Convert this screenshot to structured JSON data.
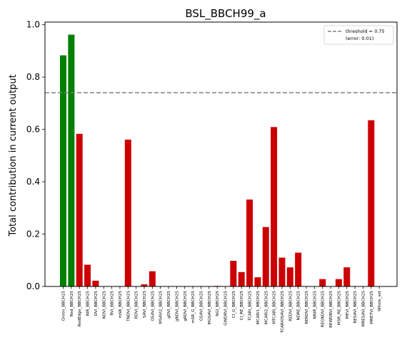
{
  "chart_data": {
    "type": "bar",
    "title": "BSL_BBCH99_a",
    "xlabel": "",
    "ylabel": "Total contribution in current output",
    "ylim": [
      0,
      1.01
    ],
    "yticks": [
      "0.0",
      "0.2",
      "0.4",
      "0.6",
      "0.8",
      "1.0"
    ],
    "threshold": 0.74,
    "legend": {
      "placement": "top-right",
      "line1": "threshold = 0.75",
      "line2": "(error: 0.01)"
    },
    "colors": {
      "selected": "#008000",
      "rejected": "#cc0000",
      "threshold": "#808080"
    },
    "categories": [
      "Green_BBCH25",
      "Red_BBCH25",
      "RedEdge_BBCH25",
      "NIR_BBCH25",
      "DVI_BBCH25",
      "NDVI_BBCH25",
      "RVI_BBCH25",
      "mSR_BBCH25",
      "TNDVI_BBCH25",
      "RDVI_BBCH25",
      "SAVI_BBCH25",
      "OSAVI_BBCH25",
      "MSAVI2_BBCH25",
      "gDVI_BBCH25",
      "gNDVI_BBCH25",
      "gRDVI_BBCH25",
      "mSR_G_BBCH25",
      "GSAVI_BBCH25",
      "MGSAVI_BBCH25",
      "NGI_BBCH25",
      "GWDRVI_BBCH25",
      "CI_G_BBCH25",
      "CI_RE_BBCH25",
      "TCARI_BBCH25",
      "MCARI1_BBCH25",
      "MCARI2_BBCH25",
      "MTCARI_BBCH25",
      "TCARIOSAVI_BBCH25",
      "REDVI_BBCH25",
      "NDRE_BBCH25",
      "RERDVI_BBCH25",
      "NNIR_BBCH25",
      "REGNDVI_BBCH25",
      "REWDRVI_BBCH25",
      "MSR_RE_BBCH25",
      "MEVI_BBCH25",
      "RESAVI_BBCH25",
      "MRESAVI_BBCH25",
      "MRETVI_BBCH25",
      "Whole_set"
    ],
    "values": [
      0.883,
      0.962,
      0.583,
      0.083,
      0.022,
      0,
      0,
      0,
      0.561,
      0,
      0.008,
      0.058,
      0,
      0,
      0,
      0,
      0,
      0,
      0,
      0.002,
      0,
      0.098,
      0.055,
      0.332,
      0.035,
      0.227,
      0.609,
      0.11,
      0.073,
      0.129,
      0,
      0,
      0.028,
      0,
      0.028,
      0.073,
      0,
      0,
      0.635,
      0
    ],
    "selected": [
      true,
      true,
      false,
      false,
      false,
      false,
      false,
      false,
      false,
      false,
      false,
      false,
      false,
      false,
      false,
      false,
      false,
      false,
      false,
      false,
      false,
      false,
      false,
      false,
      false,
      false,
      false,
      false,
      false,
      false,
      false,
      false,
      false,
      false,
      false,
      false,
      false,
      false,
      false,
      false
    ]
  }
}
